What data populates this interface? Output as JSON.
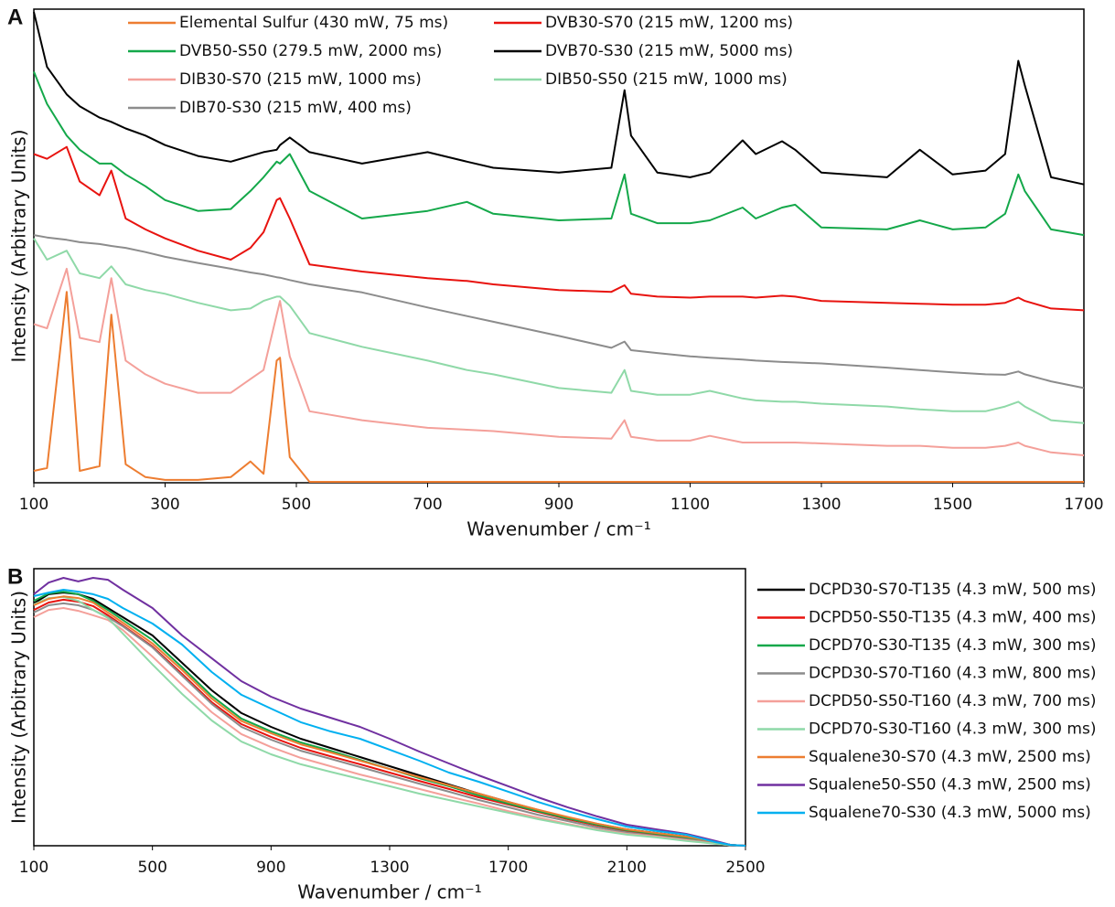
{
  "chart_data": [
    {
      "type": "line",
      "panel": "A",
      "x_label": "Wavenumber / cm⁻¹",
      "y_label": "Intensity (Arbitrary Units)",
      "legend": "top",
      "xlim": [
        100,
        1700
      ],
      "xticks": [
        100,
        300,
        500,
        700,
        900,
        1100,
        1300,
        1500,
        1700
      ],
      "ylim": [
        0,
        100
      ],
      "x": [
        100,
        120,
        150,
        170,
        200,
        218,
        240,
        270,
        300,
        350,
        400,
        430,
        450,
        470,
        475,
        490,
        520,
        600,
        700,
        760,
        800,
        900,
        980,
        1000,
        1010,
        1050,
        1100,
        1130,
        1180,
        1200,
        1240,
        1260,
        1300,
        1400,
        1450,
        1500,
        1550,
        1580,
        1600,
        1610,
        1650,
        1700
      ],
      "series": [
        {
          "name": "Elemental Sulfur (430 mW, 75 ms)",
          "color": "#ed7d31",
          "values": [
            2.5,
            3.1,
            40.3,
            2.5,
            3.5,
            35.5,
            3.9,
            1.2,
            0.6,
            0.6,
            1.2,
            4.5,
            1.9,
            25.8,
            26.4,
            5.4,
            0.2,
            0.2,
            0.2,
            0.2,
            0.2,
            0.2,
            0.2,
            0.2,
            0.2,
            0.2,
            0.2,
            0.2,
            0.2,
            0.2,
            0.2,
            0.2,
            0.2,
            0.2,
            0.2,
            0.2,
            0.2,
            0.2,
            0.2,
            0.2,
            0.2,
            0.2
          ]
        },
        {
          "name": "DVB30-S70 (215 mW, 1200 ms)",
          "color": "#e8130f",
          "values": [
            69.4,
            68.4,
            70.9,
            63.6,
            60.7,
            65.9,
            55.8,
            53.5,
            51.6,
            49.0,
            47.1,
            49.6,
            52.9,
            59.7,
            60.1,
            55.8,
            46.1,
            44.6,
            43.2,
            42.6,
            41.9,
            40.7,
            40.3,
            41.7,
            39.9,
            39.3,
            39.1,
            39.3,
            39.3,
            39.1,
            39.5,
            39.3,
            38.4,
            38.0,
            37.8,
            37.6,
            37.6,
            38.0,
            39.1,
            38.4,
            36.8,
            36.4
          ]
        },
        {
          "name": "DVB50-S50 (279.5 mW, 2000 ms)",
          "color": "#14a84a",
          "values": [
            86.8,
            80.0,
            73.3,
            70.3,
            67.4,
            67.4,
            65.1,
            62.6,
            59.7,
            57.4,
            57.8,
            61.6,
            64.5,
            67.8,
            67.4,
            69.4,
            61.6,
            55.8,
            57.4,
            59.3,
            56.8,
            55.4,
            55.8,
            65.1,
            56.8,
            54.8,
            54.8,
            55.4,
            58.1,
            55.8,
            58.1,
            58.7,
            53.9,
            53.5,
            55.4,
            53.5,
            53.9,
            56.8,
            65.1,
            61.6,
            53.5,
            52.3
          ]
        },
        {
          "name": "DVB70-S30 (215 mW, 5000 ms)",
          "color": "#000000",
          "values": [
            99.4,
            87.8,
            82.0,
            79.5,
            77.1,
            76.2,
            74.8,
            73.3,
            71.3,
            69.0,
            67.8,
            69.0,
            69.8,
            70.3,
            71.3,
            72.9,
            69.8,
            67.4,
            69.8,
            67.8,
            66.5,
            65.5,
            66.5,
            82.9,
            73.3,
            65.5,
            64.5,
            65.5,
            72.3,
            69.4,
            72.1,
            70.3,
            65.5,
            64.5,
            70.3,
            65.1,
            65.9,
            69.4,
            89.1,
            83.9,
            64.5,
            63.0
          ]
        },
        {
          "name": "DIB30-S70 (215 mW, 1000 ms)",
          "color": "#f4a09a",
          "values": [
            33.5,
            32.6,
            45.2,
            30.6,
            29.7,
            43.2,
            25.8,
            22.9,
            20.9,
            19.0,
            19.0,
            21.9,
            23.8,
            35.5,
            38.4,
            26.7,
            15.1,
            13.2,
            11.6,
            11.2,
            10.9,
            9.7,
            9.3,
            13.2,
            9.7,
            8.9,
            8.9,
            9.9,
            8.5,
            8.5,
            8.5,
            8.5,
            8.3,
            7.8,
            7.8,
            7.4,
            7.4,
            7.8,
            8.5,
            7.8,
            6.4,
            5.8
          ]
        },
        {
          "name": "DIB50-S50 (215 mW, 1000 ms)",
          "color": "#8fd9a8",
          "values": [
            51.6,
            47.1,
            49.0,
            44.2,
            43.2,
            45.7,
            41.9,
            40.7,
            39.9,
            38.0,
            36.4,
            36.8,
            38.4,
            39.3,
            39.3,
            37.4,
            31.6,
            28.7,
            25.8,
            23.8,
            22.9,
            20.0,
            19.0,
            23.8,
            19.4,
            18.6,
            18.6,
            19.4,
            17.8,
            17.4,
            17.1,
            17.1,
            16.7,
            16.1,
            15.5,
            15.1,
            15.1,
            16.1,
            17.1,
            16.1,
            13.2,
            12.6
          ]
        },
        {
          "name": "DIB70-S30 (215 mW, 400 ms)",
          "color": "#8c8c8c",
          "values": [
            52.3,
            51.8,
            51.3,
            50.8,
            50.4,
            50.0,
            49.6,
            48.7,
            47.7,
            46.4,
            45.2,
            44.4,
            44.0,
            43.4,
            43.3,
            42.8,
            41.9,
            40.2,
            37.0,
            35.2,
            34.0,
            31.0,
            28.5,
            29.8,
            28.0,
            27.4,
            26.7,
            26.4,
            26.0,
            25.8,
            25.5,
            25.4,
            25.2,
            24.3,
            23.8,
            23.3,
            22.9,
            22.8,
            23.5,
            22.9,
            21.4,
            20.0
          ]
        }
      ]
    },
    {
      "type": "line",
      "panel": "B",
      "x_label": "Wavenumber / cm⁻¹",
      "y_label": "Intensity (Arbitrary Units)",
      "legend": "right",
      "xlim": [
        100,
        2500
      ],
      "xticks": [
        100,
        500,
        900,
        1300,
        1700,
        2100,
        2500
      ],
      "ylim": [
        0,
        100
      ],
      "x": [
        100,
        150,
        200,
        250,
        300,
        350,
        400,
        500,
        600,
        700,
        800,
        900,
        1000,
        1100,
        1200,
        1300,
        1400,
        1500,
        1600,
        1700,
        1800,
        1900,
        2000,
        2100,
        2200,
        2300,
        2400,
        2450,
        2500
      ],
      "series": [
        {
          "name": "DCPD30-S70-T135 (4.3 mW, 500 ms)",
          "color": "#000000",
          "values": [
            87.5,
            90.8,
            91.4,
            90.8,
            89.1,
            85.8,
            82.5,
            75.9,
            66,
            56.1,
            47.9,
            42.9,
            38.6,
            35.3,
            32,
            28.7,
            25.4,
            22.1,
            18.8,
            15.8,
            12.9,
            10.2,
            7.9,
            5.9,
            4.6,
            3.3,
            1.3,
            0.3,
            0
          ]
        },
        {
          "name": "DCPD50-S50-T135 (4.3 mW, 400 ms)",
          "color": "#e8130f",
          "values": [
            85.1,
            87.8,
            88.8,
            88.1,
            86.5,
            83.2,
            79.5,
            71.9,
            62,
            51.8,
            43.9,
            39.3,
            35.3,
            32.3,
            29.4,
            26.4,
            23.4,
            20.5,
            17.5,
            14.9,
            12.2,
            9.6,
            7.3,
            5.3,
            4,
            2.6,
            1,
            0.3,
            0
          ]
        },
        {
          "name": "DCPD70-S30-T135 (4.3 mW, 300 ms)",
          "color": "#14a84a",
          "values": [
            88.4,
            91.1,
            91.7,
            90.8,
            88.4,
            85.1,
            81.5,
            74.3,
            64.4,
            54.1,
            45.9,
            41.3,
            37.3,
            34.3,
            31,
            27.7,
            24.4,
            21.5,
            18.2,
            15.2,
            12.5,
            9.9,
            7.6,
            5.6,
            4.3,
            3,
            1.2,
            0.3,
            0
          ]
        },
        {
          "name": "DCPD30-S70-T160 (4.3 mW, 800 ms)",
          "color": "#8c8c8c",
          "values": [
            84.2,
            86.8,
            87.5,
            86.8,
            85.1,
            82.5,
            79.2,
            71.6,
            61.4,
            51.2,
            42.9,
            38.3,
            34.3,
            31.4,
            28.4,
            25.4,
            22.4,
            19.5,
            16.5,
            13.9,
            11.2,
            8.9,
            6.6,
            4.8,
            3.5,
            2.3,
            0.9,
            0.2,
            0
          ]
        },
        {
          "name": "DCPD50-S50-T160 (4.3 mW, 700 ms)",
          "color": "#f4a09a",
          "values": [
            82.5,
            85.1,
            85.8,
            84.8,
            83.2,
            81.5,
            77.9,
            68.3,
            58.1,
            48.2,
            40.3,
            35.6,
            31.7,
            28.7,
            25.7,
            23.1,
            20.5,
            17.8,
            15.2,
            12.5,
            10.2,
            7.9,
            5.9,
            4.3,
            3.3,
            2,
            0.7,
            0.2,
            0
          ]
        },
        {
          "name": "DCPD70-S30-T160 (4.3 mW, 300 ms)",
          "color": "#8fd9a8",
          "values": [
            87.1,
            89.4,
            89.8,
            88.4,
            85.1,
            82.2,
            76.6,
            65.4,
            54.8,
            45.2,
            37.6,
            33,
            29.4,
            26.7,
            24.1,
            21.5,
            18.8,
            16.5,
            14.2,
            11.9,
            9.6,
            7.6,
            5.6,
            4,
            3,
            1.7,
            0.7,
            0.2,
            0
          ]
        },
        {
          "name": "Squalene30-S70 (4.3 mW, 2500 ms)",
          "color": "#ed7d31",
          "values": [
            86.8,
            89.1,
            90,
            89.4,
            87.8,
            84.2,
            80.5,
            73,
            63.4,
            53.1,
            45,
            40.6,
            36.6,
            33.7,
            30.7,
            27.7,
            24.8,
            21.8,
            18.8,
            15.8,
            13,
            10.4,
            8,
            5.9,
            4.6,
            3.3,
            1.3,
            0.3,
            0
          ]
        },
        {
          "name": "Squalene50-S50 (4.3 mW, 2500 ms)",
          "color": "#7030a0",
          "values": [
            90.8,
            95,
            96.7,
            95.4,
            96.7,
            96,
            92.4,
            85.8,
            75.9,
            67.7,
            59.4,
            53.8,
            49.5,
            46.2,
            42.9,
            38.6,
            34,
            29.7,
            25.4,
            21.5,
            17.5,
            13.9,
            10.6,
            7.6,
            5.9,
            4.3,
            1.7,
            0.3,
            0
          ]
        },
        {
          "name": "Squalene70-S30 (4.3 mW, 5000 ms)",
          "color": "#00b0f0",
          "values": [
            90.1,
            91.4,
            92.4,
            91.7,
            90.8,
            89.1,
            85.8,
            80.2,
            72.6,
            62.7,
            54.5,
            49.5,
            44.6,
            41.3,
            38.6,
            34.7,
            30.7,
            26.4,
            23.1,
            19.5,
            15.8,
            12.5,
            9.6,
            6.9,
            5.3,
            4,
            1.3,
            0.3,
            0
          ]
        }
      ]
    }
  ]
}
